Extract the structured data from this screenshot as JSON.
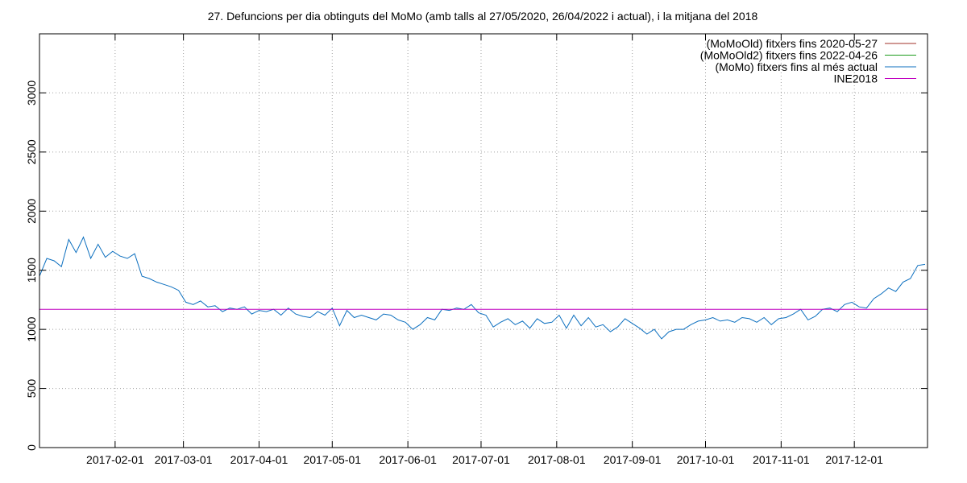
{
  "chart_data": {
    "type": "line",
    "title": "27. Defuncions per dia obtinguts del MoMo (amb talls al 27/05/2020, 26/04/2022 i actual), i la mitjana del 2018",
    "xlabel": "",
    "ylabel": "",
    "x_range": [
      "2017-01-01",
      "2017-12-31"
    ],
    "ylim": [
      0,
      3500
    ],
    "y_ticks": [
      0,
      500,
      1000,
      1500,
      2000,
      2500,
      3000
    ],
    "x_ticks": [
      "2017-02-01",
      "2017-03-01",
      "2017-04-01",
      "2017-05-01",
      "2017-06-01",
      "2017-07-01",
      "2017-08-01",
      "2017-09-01",
      "2017-10-01",
      "2017-11-01",
      "2017-12-01"
    ],
    "grid": true,
    "legend_position": "top-right",
    "series": [
      {
        "name": "(MoMoOld) fitxers fins 2020-05-27",
        "color": "#a0302a",
        "x": [],
        "values": []
      },
      {
        "name": "(MoMoOld2) fitxers fins 2022-04-26",
        "color": "#1a9a1a",
        "x": [],
        "values": []
      },
      {
        "name": "(MoMo) fitxers fins al més actual",
        "color": "#0c6fbf",
        "x": [
          "2017-01-01",
          "2017-01-04",
          "2017-01-07",
          "2017-01-10",
          "2017-01-13",
          "2017-01-16",
          "2017-01-19",
          "2017-01-22",
          "2017-01-25",
          "2017-01-28",
          "2017-01-31",
          "2017-02-03",
          "2017-02-06",
          "2017-02-09",
          "2017-02-12",
          "2017-02-15",
          "2017-02-18",
          "2017-02-21",
          "2017-02-24",
          "2017-02-27",
          "2017-03-02",
          "2017-03-05",
          "2017-03-08",
          "2017-03-11",
          "2017-03-14",
          "2017-03-17",
          "2017-03-20",
          "2017-03-23",
          "2017-03-26",
          "2017-03-29",
          "2017-04-01",
          "2017-04-04",
          "2017-04-07",
          "2017-04-10",
          "2017-04-13",
          "2017-04-16",
          "2017-04-19",
          "2017-04-22",
          "2017-04-25",
          "2017-04-28",
          "2017-05-01",
          "2017-05-04",
          "2017-05-07",
          "2017-05-10",
          "2017-05-13",
          "2017-05-16",
          "2017-05-19",
          "2017-05-22",
          "2017-05-25",
          "2017-05-28",
          "2017-05-31",
          "2017-06-03",
          "2017-06-06",
          "2017-06-09",
          "2017-06-12",
          "2017-06-15",
          "2017-06-18",
          "2017-06-21",
          "2017-06-24",
          "2017-06-27",
          "2017-06-30",
          "2017-07-03",
          "2017-07-06",
          "2017-07-09",
          "2017-07-12",
          "2017-07-15",
          "2017-07-18",
          "2017-07-21",
          "2017-07-24",
          "2017-07-27",
          "2017-07-30",
          "2017-08-02",
          "2017-08-05",
          "2017-08-08",
          "2017-08-11",
          "2017-08-14",
          "2017-08-17",
          "2017-08-20",
          "2017-08-23",
          "2017-08-26",
          "2017-08-29",
          "2017-09-01",
          "2017-09-04",
          "2017-09-07",
          "2017-09-10",
          "2017-09-13",
          "2017-09-16",
          "2017-09-19",
          "2017-09-22",
          "2017-09-25",
          "2017-09-28",
          "2017-10-01",
          "2017-10-04",
          "2017-10-07",
          "2017-10-10",
          "2017-10-13",
          "2017-10-16",
          "2017-10-19",
          "2017-10-22",
          "2017-10-25",
          "2017-10-28",
          "2017-10-31",
          "2017-11-03",
          "2017-11-06",
          "2017-11-09",
          "2017-11-12",
          "2017-11-15",
          "2017-11-18",
          "2017-11-21",
          "2017-11-24",
          "2017-11-27",
          "2017-11-30",
          "2017-12-03",
          "2017-12-06",
          "2017-12-09",
          "2017-12-12",
          "2017-12-15",
          "2017-12-18",
          "2017-12-21",
          "2017-12-24",
          "2017-12-27",
          "2017-12-30"
        ],
        "values": [
          1450,
          1600,
          1580,
          1530,
          1760,
          1650,
          1780,
          1600,
          1720,
          1610,
          1660,
          1620,
          1600,
          1640,
          1450,
          1430,
          1400,
          1380,
          1360,
          1330,
          1230,
          1210,
          1240,
          1190,
          1200,
          1150,
          1180,
          1170,
          1190,
          1130,
          1160,
          1150,
          1170,
          1120,
          1180,
          1130,
          1110,
          1100,
          1150,
          1120,
          1180,
          1030,
          1160,
          1100,
          1120,
          1100,
          1080,
          1130,
          1120,
          1080,
          1060,
          1000,
          1040,
          1100,
          1080,
          1170,
          1160,
          1180,
          1170,
          1210,
          1140,
          1120,
          1020,
          1060,
          1090,
          1040,
          1070,
          1010,
          1090,
          1050,
          1060,
          1120,
          1010,
          1120,
          1030,
          1100,
          1020,
          1040,
          980,
          1020,
          1090,
          1050,
          1010,
          960,
          1000,
          920,
          980,
          1000,
          1000,
          1040,
          1070,
          1080,
          1100,
          1070,
          1080,
          1060,
          1100,
          1090,
          1060,
          1100,
          1040,
          1090,
          1100,
          1130,
          1170,
          1080,
          1110,
          1170,
          1180,
          1150,
          1210,
          1230,
          1190,
          1180,
          1260,
          1300,
          1350,
          1320,
          1400,
          1430,
          1540,
          1550
        ]
      },
      {
        "name": "INE2018",
        "color": "#c000c0",
        "x": [
          "2017-01-01",
          "2017-12-31"
        ],
        "values": [
          1170,
          1170
        ]
      }
    ]
  }
}
